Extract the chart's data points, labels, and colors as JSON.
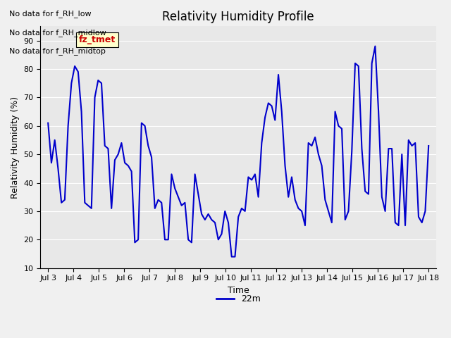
{
  "title": "Relativity Humidity Profile",
  "xlabel": "Time",
  "ylabel": "Relativity Humidity (%)",
  "ylim": [
    10,
    95
  ],
  "yticks": [
    10,
    20,
    30,
    40,
    50,
    60,
    70,
    80,
    90
  ],
  "xtick_labels": [
    "Jul 3",
    "Jul 4",
    "Jul 5",
    "Jul 6",
    "Jul 7",
    "Jul 8",
    "Jul 9",
    "Jul 10",
    "Jul 11",
    "Jul 12",
    "Jul 13",
    "Jul 14",
    "Jul 15",
    "Jul 16",
    "Jul 17",
    "Jul 18"
  ],
  "line_color": "#0000cc",
  "line_width": 1.5,
  "legend_label": "22m",
  "legend_line_color": "#0000cc",
  "no_data_texts": [
    "No data for f_RH_low",
    "No data for f_RH_midlow",
    "No data for f_RH_midtop"
  ],
  "annotation_text": "fz_tmet",
  "annotation_color": "#cc0000",
  "annotation_bg": "#ffffcc",
  "plot_bg": "#e8e8e8",
  "fig_bg": "#f0f0f0",
  "y_values": [
    61,
    47,
    55,
    45,
    33,
    34,
    60,
    75,
    81,
    79,
    65,
    33,
    32,
    31,
    70,
    76,
    75,
    53,
    52,
    31,
    48,
    50,
    54,
    47,
    46,
    44,
    19,
    20,
    61,
    60,
    53,
    49,
    31,
    34,
    33,
    20,
    20,
    43,
    38,
    35,
    32,
    33,
    20,
    19,
    43,
    36,
    29,
    27,
    29,
    27,
    26,
    20,
    22,
    30,
    26,
    14,
    14,
    28,
    31,
    30,
    42,
    41,
    43,
    35,
    54,
    63,
    68,
    67,
    62,
    78,
    65,
    46,
    35,
    42,
    34,
    31,
    30,
    25,
    54,
    53,
    56,
    50,
    46,
    34,
    30,
    26,
    65,
    60,
    59,
    27,
    30,
    51,
    82,
    81,
    52,
    37,
    36,
    82,
    88,
    65,
    35,
    30,
    52,
    52,
    26,
    25,
    50,
    25,
    55,
    53,
    54,
    28,
    26,
    30,
    53
  ],
  "figsize": [
    6.4,
    4.8
  ],
  "dpi": 100
}
